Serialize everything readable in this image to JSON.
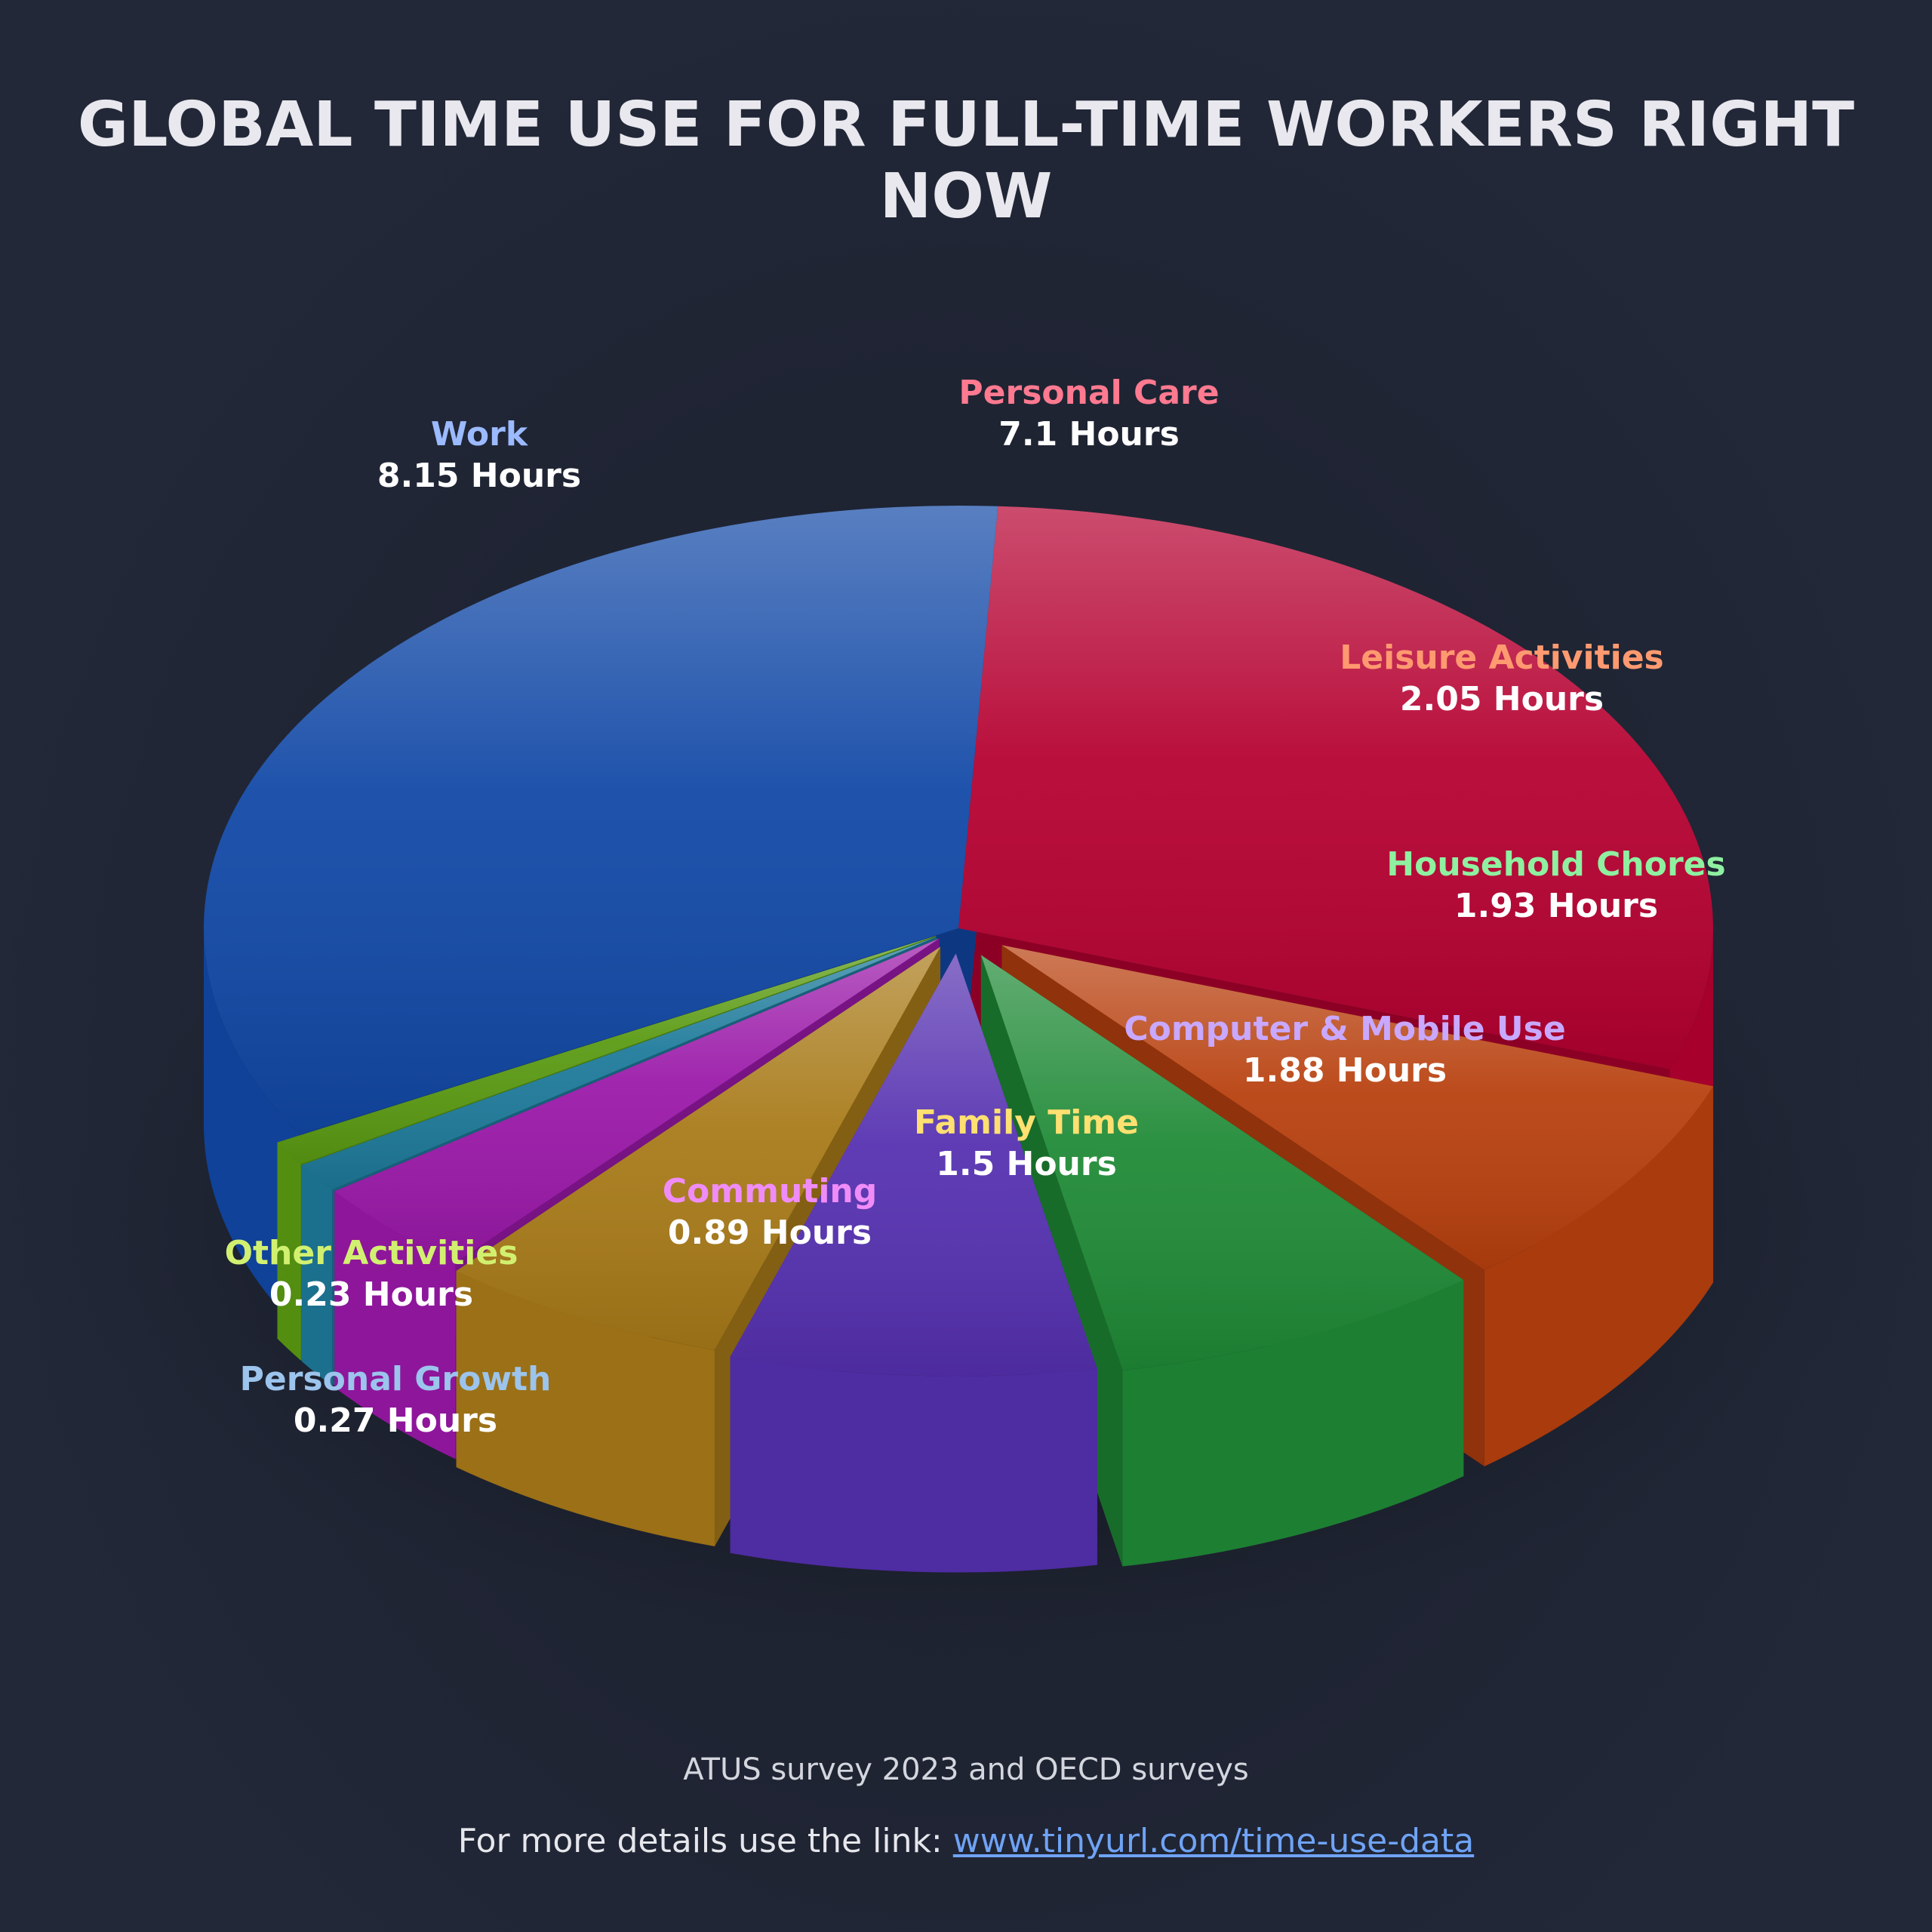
{
  "title": "GLOBAL TIME USE FOR FULL-TIME WORKERS RIGHT NOW",
  "footer": {
    "source": "ATUS survey 2023 and OECD surveys",
    "details_prefix": "For more details use the link: ",
    "link_text": "www.tinyurl.com/time-use-data "
  },
  "chart_data": {
    "type": "pie",
    "unit": "Hours",
    "slices": [
      {
        "label": "Personal Care",
        "value": 7.1,
        "value_text": "7.1 Hours",
        "color": "#b50030",
        "label_color": "#ff7a90"
      },
      {
        "label": "Leisure Activities",
        "value": 2.05,
        "value_text": "2.05 Hours",
        "color": "#b8400e",
        "label_color": "#ff9a70"
      },
      {
        "label": "Household Chores",
        "value": 1.93,
        "value_text": "1.93 Hours",
        "color": "#1f8a36",
        "label_color": "#8ef0a0"
      },
      {
        "label": "Computer & Mobile Use",
        "value": 1.88,
        "value_text": "1.88 Hours",
        "color": "#5530b0",
        "label_color": "#c9a8ff"
      },
      {
        "label": "Family Time",
        "value": 1.5,
        "value_text": "1.5 Hours",
        "color": "#a87a18",
        "label_color": "#ffe070"
      },
      {
        "label": "Commuting",
        "value": 0.89,
        "value_text": "0.89 Hours",
        "color": "#9a18a8",
        "label_color": "#f08cf8"
      },
      {
        "label": "Personal Growth",
        "value": 0.27,
        "value_text": "0.27 Hours",
        "color": "#1d7a9a",
        "label_color": "#9cc4ec"
      },
      {
        "label": "Other Activities",
        "value": 0.23,
        "value_text": "0.23 Hours",
        "color": "#5a9a12",
        "label_color": "#d2f070"
      },
      {
        "label": "Work",
        "value": 8.15,
        "value_text": "8.15 Hours",
        "color": "#1148a6",
        "label_color": "#9cbaff"
      }
    ]
  }
}
